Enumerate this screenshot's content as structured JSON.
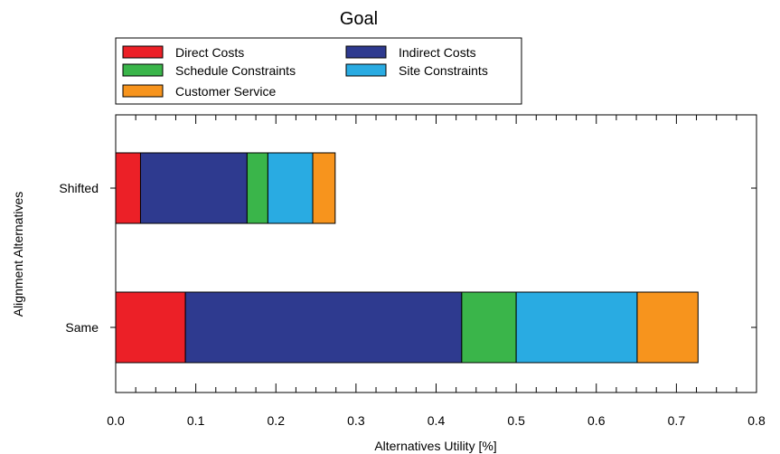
{
  "chart_data": {
    "type": "bar",
    "orientation": "horizontal",
    "stacked": true,
    "title": "Goal",
    "xlabel": "Alternatives Utility [%]",
    "ylabel": "Alignment Alternatives",
    "xlim": [
      0,
      0.8
    ],
    "xticks": [
      "0.0",
      "0.1",
      "0.2",
      "0.3",
      "0.4",
      "0.5",
      "0.6",
      "0.7",
      "0.8"
    ],
    "categories": [
      "Shifted",
      "Same"
    ],
    "grid": false,
    "legend_position": "top",
    "series": [
      {
        "name": "Direct Costs",
        "color": "#ec2027",
        "values": [
          0.031,
          0.087
        ]
      },
      {
        "name": "Indirect Costs",
        "color": "#2e3a8f",
        "values": [
          0.133,
          0.345
        ]
      },
      {
        "name": "Schedule Constraints",
        "color": "#3ab54a",
        "values": [
          0.026,
          0.068
        ]
      },
      {
        "name": "Site Constraints",
        "color": "#29abe2",
        "values": [
          0.056,
          0.151
        ]
      },
      {
        "name": "Customer Service",
        "color": "#f7941d",
        "values": [
          0.028,
          0.076
        ]
      }
    ]
  }
}
